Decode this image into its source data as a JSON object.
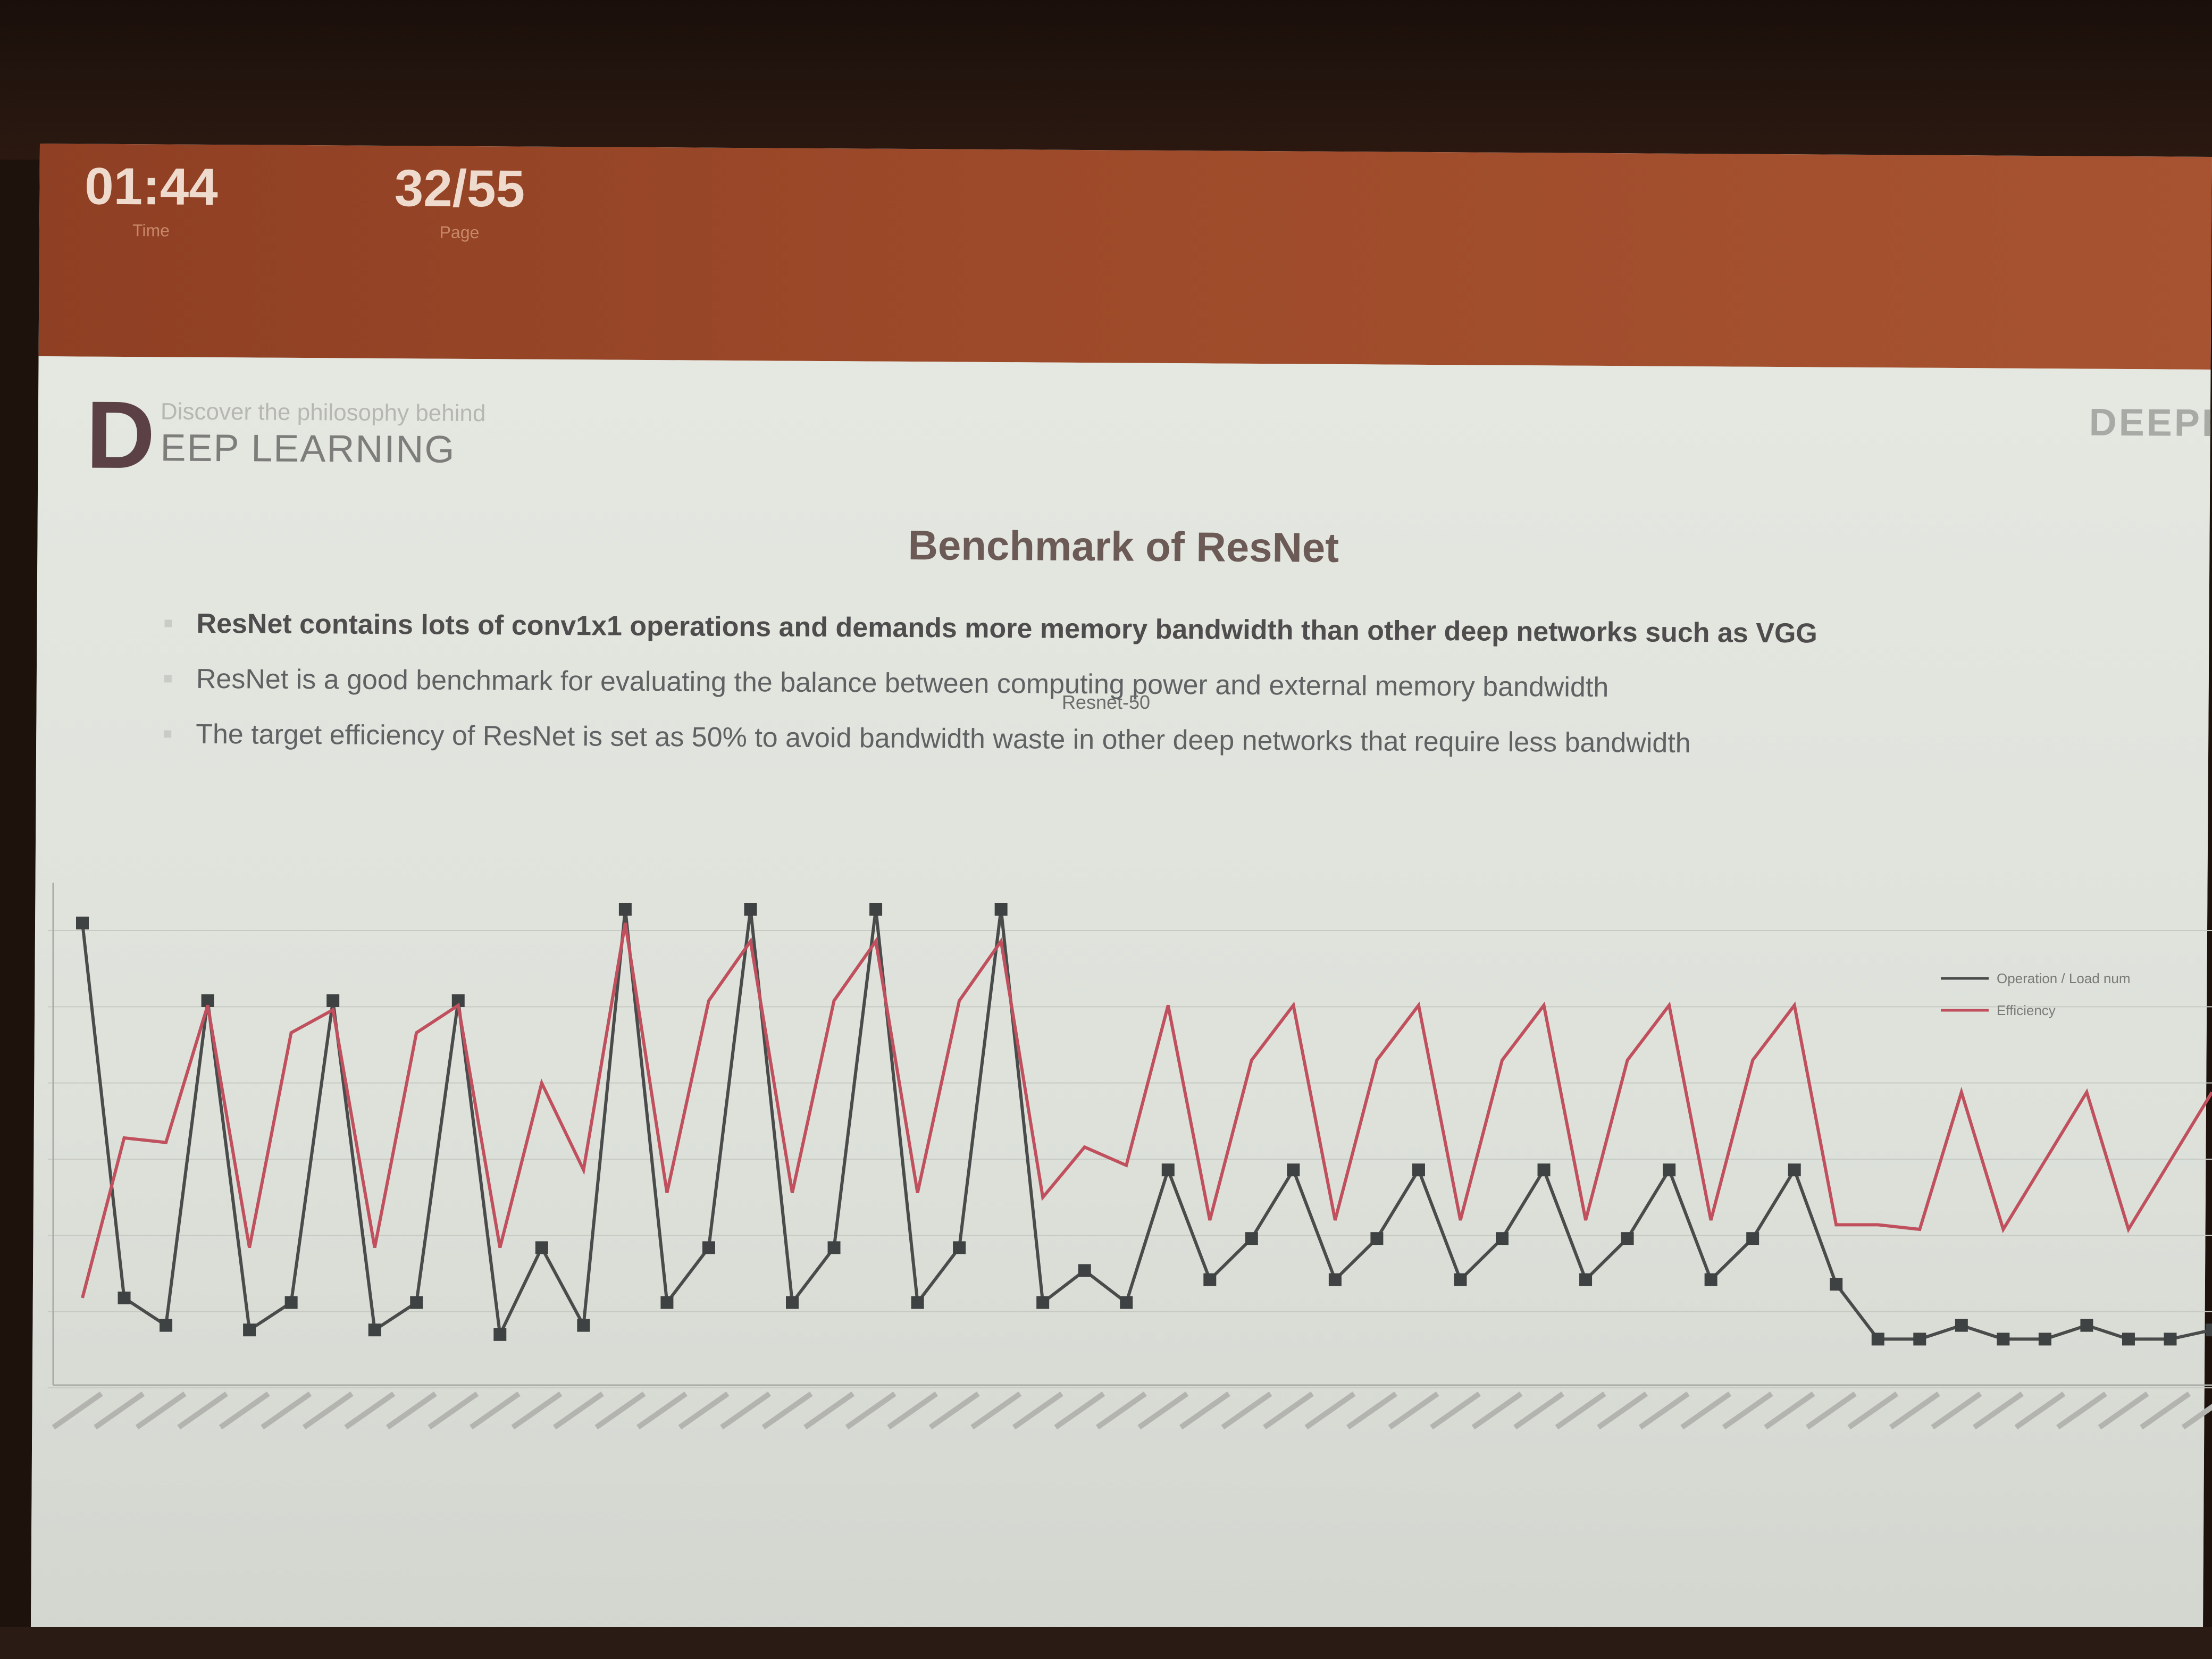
{
  "presenter": {
    "time": "01:44",
    "time_label": "Time",
    "page": "32/55",
    "page_label": "Page"
  },
  "slide": {
    "logo_letter": "D",
    "logo_tagline": "Discover the philosophy behind",
    "logo_word": "EEP LEARNING",
    "brand_right": "DEEPH",
    "title": "Benchmark of ResNet",
    "bullets": [
      "ResNet contains lots of conv1x1 operations and demands more memory bandwidth than other deep networks such as VGG",
      "ResNet is a good benchmark for evaluating the balance between computing power and external memory bandwidth",
      "The target efficiency of ResNet is set as 50%  to avoid bandwidth waste in other deep networks that require less bandwidth"
    ]
  },
  "chart_data": {
    "type": "line",
    "title": "Resnet-50",
    "legend_position": "right",
    "grid": true,
    "ylim": [
      0,
      100
    ],
    "x_count": 52,
    "series": [
      {
        "name": "Operation / Load num",
        "color": "#4a4c4c",
        "marker": "square",
        "values": [
          97,
          15,
          9,
          80,
          8,
          14,
          80,
          8,
          14,
          80,
          7,
          26,
          9,
          100,
          14,
          26,
          100,
          14,
          26,
          100,
          14,
          26,
          100,
          14,
          21,
          14,
          43,
          19,
          28,
          43,
          19,
          28,
          43,
          19,
          28,
          43,
          19,
          28,
          43,
          19,
          28,
          43,
          18,
          6,
          6,
          9,
          6,
          6,
          9,
          6,
          6,
          8
        ]
      },
      {
        "name": "Efficiency",
        "color": "#c0505d",
        "marker": "none",
        "values": [
          15,
          50,
          49,
          79,
          26,
          73,
          78,
          26,
          73,
          79,
          26,
          62,
          43,
          97,
          38,
          80,
          93,
          38,
          80,
          93,
          38,
          80,
          93,
          37,
          48,
          44,
          79,
          32,
          67,
          79,
          32,
          67,
          79,
          32,
          67,
          79,
          32,
          67,
          79,
          32,
          67,
          79,
          31,
          31,
          30,
          60,
          30,
          45,
          60,
          30,
          45,
          60
        ]
      }
    ]
  },
  "colors": {
    "presenter_bar": "#9d4a2a",
    "slide_bg": "#e2e5de",
    "title_text": "#6b5a55"
  }
}
